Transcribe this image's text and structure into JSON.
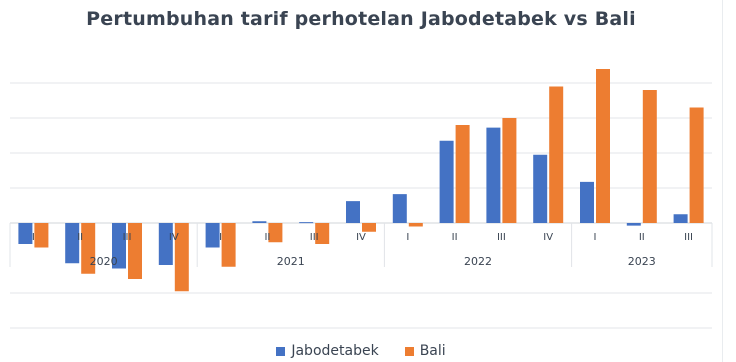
{
  "chart_data": {
    "type": "bar",
    "title": "Pertumbuhan tarif perhotelan Jabodetabek vs Bali",
    "xlabel": "",
    "ylabel": "",
    "ylim": [
      -4.5,
      9
    ],
    "grid": true,
    "legend_position": "bottom",
    "categories": [
      "I",
      "II",
      "III",
      "IV",
      "I",
      "II",
      "III",
      "IV",
      "I",
      "II",
      "III",
      "IV",
      "I",
      "II",
      "III"
    ],
    "groups": [
      {
        "label": "2020",
        "count": 4
      },
      {
        "label": "2021",
        "count": 4
      },
      {
        "label": "2022",
        "count": 4
      },
      {
        "label": "2023",
        "count": 3
      }
    ],
    "series": [
      {
        "name": "Jabodetabek",
        "color": "#4472c4",
        "values": [
          -1.2,
          -2.3,
          -2.6,
          -2.4,
          -1.4,
          0.1,
          0.05,
          1.25,
          1.65,
          4.7,
          5.45,
          3.9,
          2.35,
          -0.15,
          0.5
        ]
      },
      {
        "name": "Bali",
        "color": "#ed7d31",
        "values": [
          -1.4,
          -2.9,
          -3.2,
          -3.9,
          -2.5,
          -1.1,
          -1.2,
          -0.5,
          -0.2,
          5.6,
          6.0,
          7.8,
          8.8,
          7.6,
          6.6
        ]
      }
    ]
  }
}
